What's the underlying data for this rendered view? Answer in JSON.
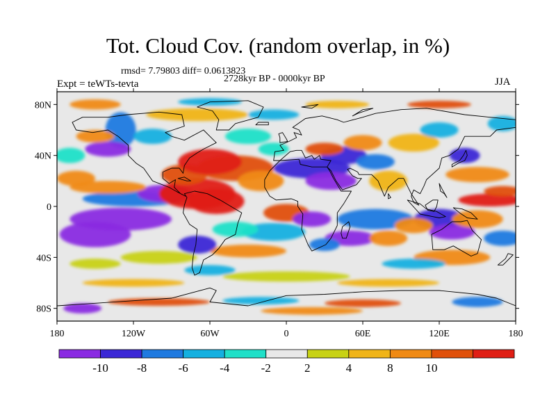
{
  "title": "Tot. Cloud Cov. (random overlap, in %)",
  "stats": "rmsd= 7.79803 diff= 0.0613823",
  "period": "2728kyr BP - 0000kyr BP",
  "expt": "Expt = teWTs-tevta",
  "season": "JJA",
  "lat_labels": [
    "80N",
    "40N",
    "0",
    "40S",
    "80S"
  ],
  "lat_values": [
    80,
    40,
    0,
    -40,
    -80
  ],
  "lon_labels": [
    "180",
    "120W",
    "60W",
    "0",
    "60E",
    "120E",
    "180"
  ],
  "lon_values": [
    -180,
    -120,
    -60,
    0,
    60,
    120,
    180
  ],
  "colorbar": {
    "labels": [
      "-10",
      "-8",
      "-6",
      "-4",
      "-2",
      "2",
      "4",
      "8",
      "10"
    ],
    "colors": [
      "#8a2be2",
      "#3b28d6",
      "#1f7ae0",
      "#14b0e0",
      "#20e0c8",
      "#e8e8e8",
      "#c8d214",
      "#f0b418",
      "#f08a14",
      "#e0500a",
      "#e01e14"
    ]
  },
  "colors": {
    "land_outline": "#000000",
    "neutral": "#e8e8e8"
  }
}
